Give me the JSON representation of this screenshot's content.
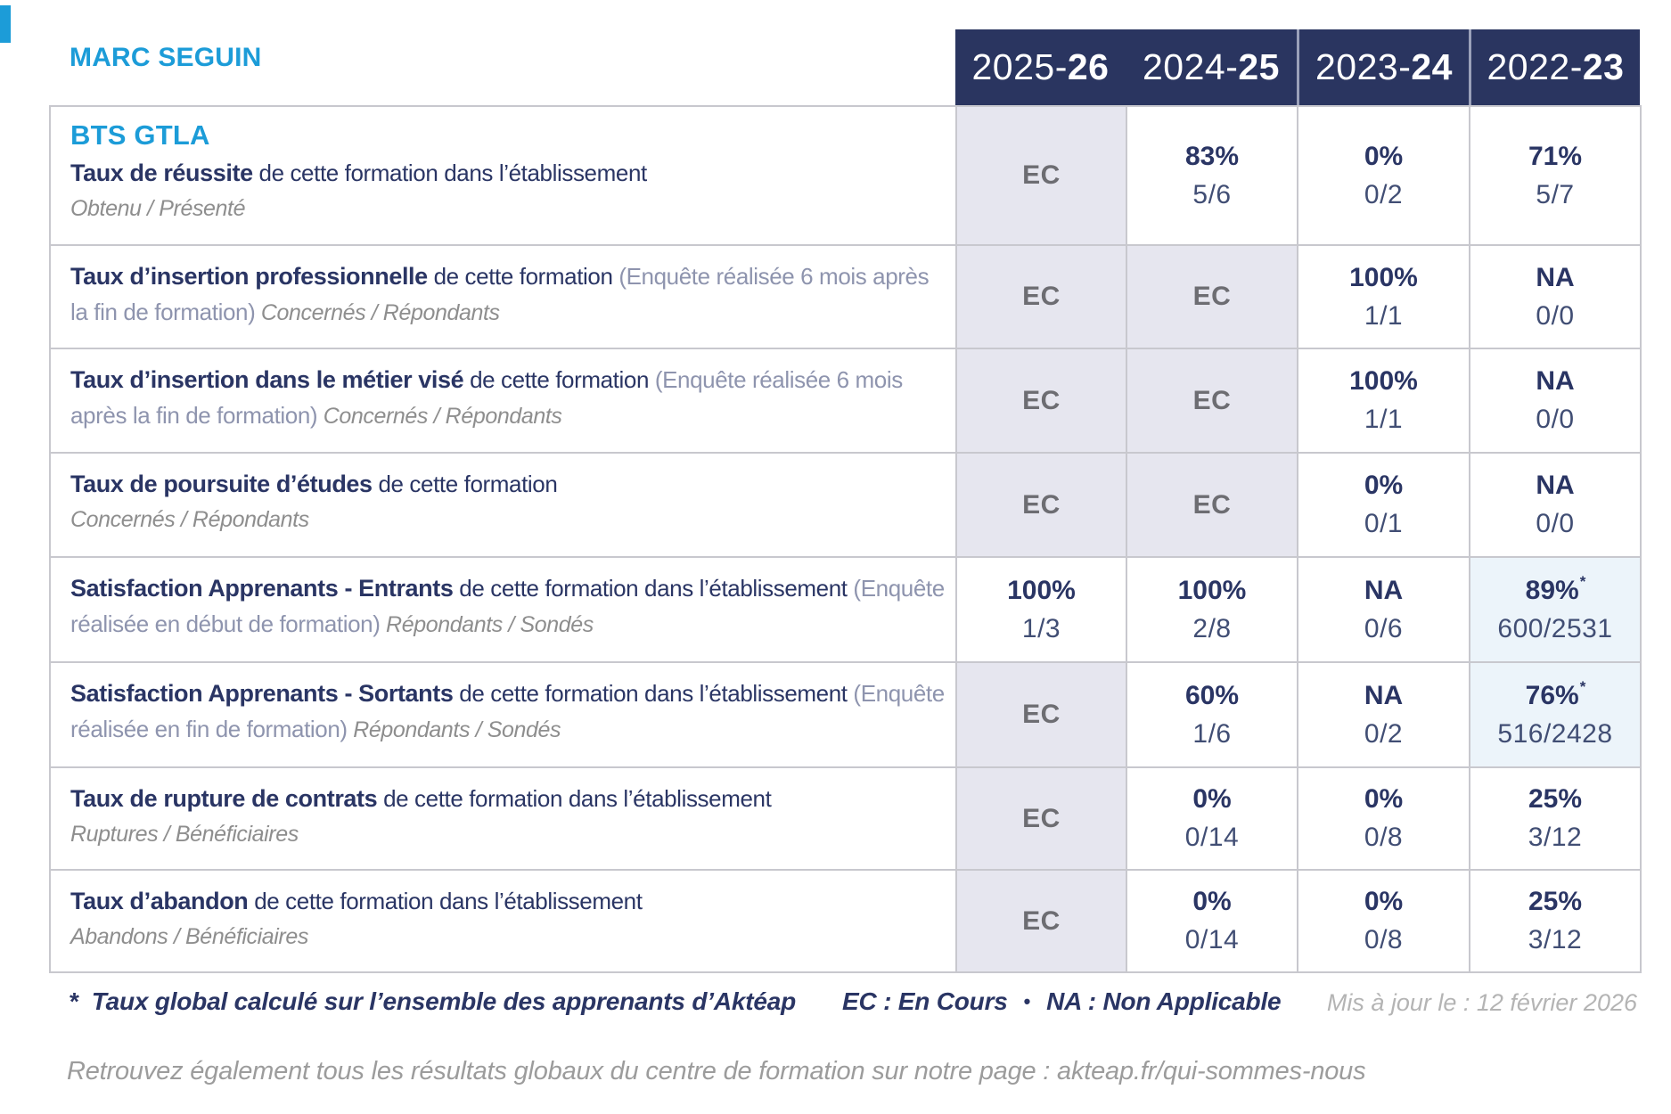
{
  "header": {
    "establishment": "MARC SEGUIN",
    "columns": [
      {
        "prefix": "2025-",
        "suffix": "26"
      },
      {
        "prefix": "2024-",
        "suffix": "25"
      },
      {
        "prefix": "2023-",
        "suffix": "24"
      },
      {
        "prefix": "2022-",
        "suffix": "23"
      }
    ]
  },
  "program": "BTS GTLA",
  "rows": [
    {
      "title": "Taux de réussite",
      "description": "de cette formation dans l’établissement",
      "paren": "",
      "sublabel": "Obtenu / Présenté",
      "sublabel_inline": false,
      "cells": [
        {
          "kind": "ec",
          "main": "EC"
        },
        {
          "kind": "pct",
          "main": "83%",
          "sub": "5/6"
        },
        {
          "kind": "pct",
          "main": "0%",
          "sub": "0/2"
        },
        {
          "kind": "pct",
          "main": "71%",
          "sub": "5/7"
        }
      ]
    },
    {
      "title": "Taux d’insertion professionnelle",
      "description": "de cette formation",
      "paren": "(Enquête réalisée 6 mois après la fin de formation)",
      "sublabel": "Concernés / Répondants",
      "sublabel_inline": true,
      "cells": [
        {
          "kind": "ec",
          "main": "EC"
        },
        {
          "kind": "ec",
          "main": "EC"
        },
        {
          "kind": "pct",
          "main": "100%",
          "sub": "1/1"
        },
        {
          "kind": "pct",
          "main": "NA",
          "sub": "0/0"
        }
      ]
    },
    {
      "title": "Taux d’insertion dans le métier visé",
      "description": "de cette formation",
      "paren": "(Enquête réalisée 6 mois après la fin de formation)",
      "sublabel": "Concernés / Répondants",
      "sublabel_inline": true,
      "cells": [
        {
          "kind": "ec",
          "main": "EC"
        },
        {
          "kind": "ec",
          "main": "EC"
        },
        {
          "kind": "pct",
          "main": "100%",
          "sub": "1/1"
        },
        {
          "kind": "pct",
          "main": "NA",
          "sub": "0/0"
        }
      ]
    },
    {
      "title": "Taux de poursuite d’études",
      "description": "de cette formation",
      "paren": "",
      "sublabel": "Concernés / Répondants",
      "sublabel_inline": false,
      "cells": [
        {
          "kind": "ec",
          "main": "EC"
        },
        {
          "kind": "ec",
          "main": "EC"
        },
        {
          "kind": "pct",
          "main": "0%",
          "sub": "0/1"
        },
        {
          "kind": "pct",
          "main": "NA",
          "sub": "0/0"
        }
      ]
    },
    {
      "title": "Satisfaction Apprenants - Entrants",
      "description": "de cette formation dans l’établissement",
      "paren": "(Enquête réalisée en début de formation)",
      "sublabel": "Répondants / Sondés",
      "sublabel_inline": true,
      "cells": [
        {
          "kind": "pct",
          "main": "100%",
          "sub": "1/3"
        },
        {
          "kind": "pct",
          "main": "100%",
          "sub": "2/8"
        },
        {
          "kind": "pct",
          "main": "NA",
          "sub": "0/6"
        },
        {
          "kind": "pct-star",
          "main": "89%",
          "star": "*",
          "sub": "600/2531"
        }
      ]
    },
    {
      "title": "Satisfaction Apprenants - Sortants",
      "description": "de cette formation dans l’établissement",
      "paren": "(Enquête réalisée en fin de formation)",
      "sublabel": "Répondants / Sondés",
      "sublabel_inline": true,
      "cells": [
        {
          "kind": "ec",
          "main": "EC"
        },
        {
          "kind": "pct",
          "main": "60%",
          "sub": "1/6"
        },
        {
          "kind": "pct",
          "main": "NA",
          "sub": "0/2"
        },
        {
          "kind": "pct-star",
          "main": "76%",
          "star": "*",
          "sub": "516/2428"
        }
      ]
    },
    {
      "title": "Taux de rupture de contrats",
      "description": "de cette formation dans l’établissement",
      "paren": "",
      "sublabel": "Ruptures / Bénéficiaires",
      "sublabel_inline": false,
      "cells": [
        {
          "kind": "ec",
          "main": "EC"
        },
        {
          "kind": "pct",
          "main": "0%",
          "sub": "0/14"
        },
        {
          "kind": "pct",
          "main": "0%",
          "sub": "0/8"
        },
        {
          "kind": "pct",
          "main": "25%",
          "sub": "3/12"
        }
      ]
    },
    {
      "title": "Taux d’abandon",
      "description": "de cette formation dans l’établissement",
      "paren": "",
      "sublabel": "Abandons / Bénéficiaires",
      "sublabel_inline": false,
      "cells": [
        {
          "kind": "ec",
          "main": "EC"
        },
        {
          "kind": "pct",
          "main": "0%",
          "sub": "0/14"
        },
        {
          "kind": "pct",
          "main": "0%",
          "sub": "0/8"
        },
        {
          "kind": "pct",
          "main": "25%",
          "sub": "3/12"
        }
      ]
    }
  ],
  "footnote": {
    "star": "*",
    "text": "Taux global calculé sur l’ensemble des apprenants d’Aktéap",
    "legend_ec": "EC : En Cours",
    "separator": "•",
    "legend_na": "NA : Non Applicable",
    "updated": "Mis à jour le : 12 février 2026"
  },
  "bottom_note": {
    "text": "Retrouvez également tous les résultats globaux du centre de formation sur notre page : ",
    "url": "akteap.fr/qui-sommes-nous"
  },
  "colors": {
    "accent_blue": "#1c9cd8",
    "navy": "#2a3564",
    "header_bg": "#2a3560",
    "ec_bg": "#e6e6ef",
    "ec_text": "#6d6d72",
    "frac": "#414e74",
    "paren": "#8e94ae",
    "sub_gray": "#8e8e8e",
    "star_bg": "#ecf4fa",
    "border": "#c8c8ce",
    "updated_gray": "#b4b4b4",
    "note_gray": "#9c9c9c"
  }
}
